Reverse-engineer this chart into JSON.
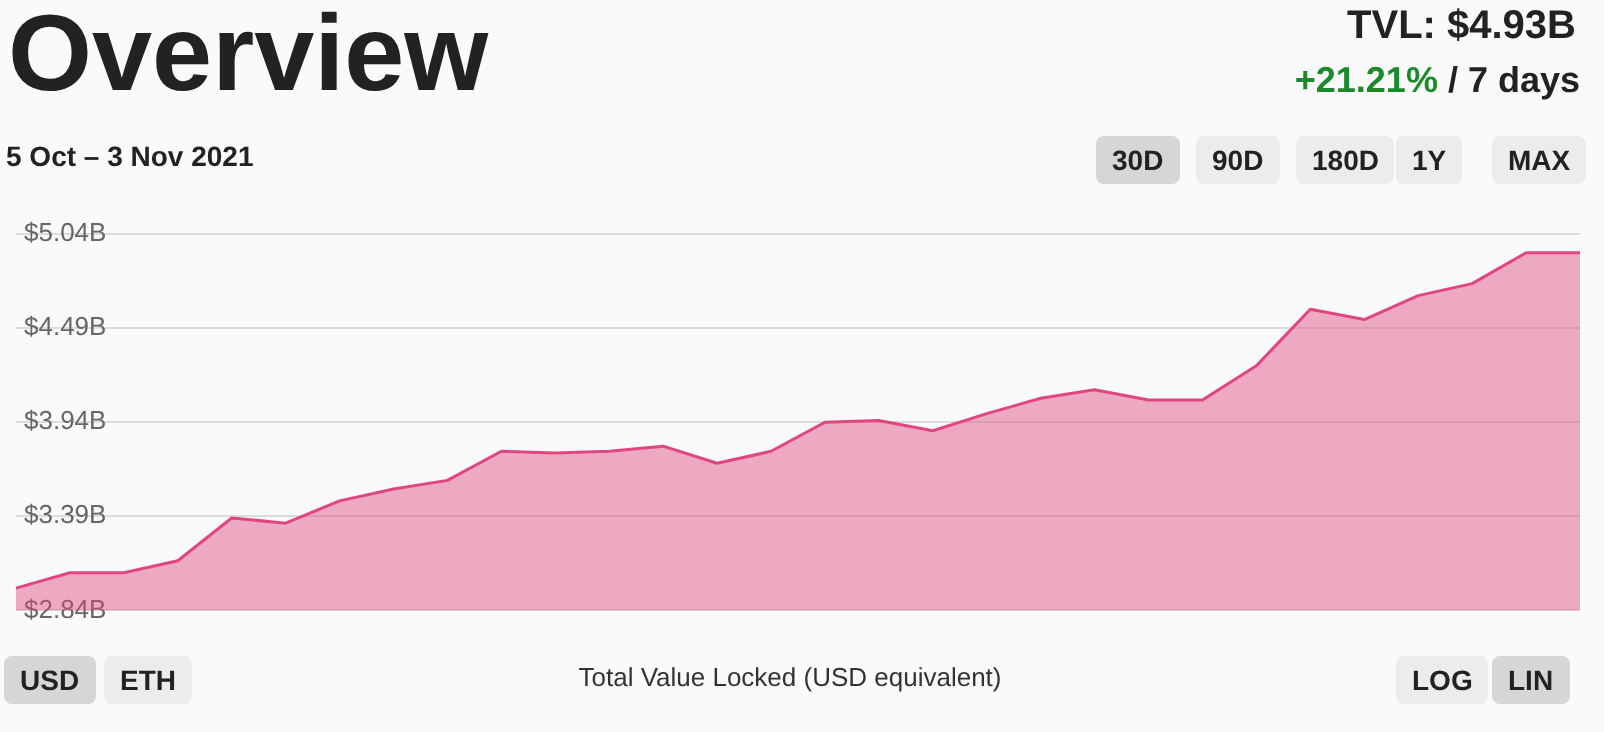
{
  "chart_data": {
    "type": "area",
    "title": "Overview",
    "subtitle": "5 Oct – 3 Nov 2021",
    "annotations": [
      "TVL: $4.93B",
      "+21.21% / 7 days",
      "30D",
      "90D",
      "180D",
      "1Y",
      "MAX",
      "USD",
      "ETH",
      "Total Value Locked (USD equivalent)",
      "LOG",
      "LIN"
    ],
    "categories": [
      null,
      null,
      null,
      null,
      null,
      null,
      null,
      null,
      null,
      null,
      null,
      null,
      null,
      null,
      null,
      null,
      null,
      null,
      null,
      null,
      null,
      null,
      null,
      null,
      null,
      null,
      null,
      null,
      null,
      null
    ],
    "series": [
      {
        "color": "#e0467f",
        "values": [
          2.97,
          3.06,
          3.06,
          3.13,
          3.38,
          3.35,
          3.48,
          3.55,
          3.6,
          3.77,
          3.76,
          3.77,
          3.8,
          3.7,
          3.77,
          3.94,
          3.95,
          3.89,
          3.99,
          4.08,
          4.13,
          4.07,
          4.07,
          4.27,
          4.6,
          4.54,
          4.68,
          4.75,
          4.93,
          4.93
        ]
      }
    ],
    "ylim": [
      2.84,
      5.04
    ],
    "yticks": [
      {
        "value": 2.84,
        "label": "$2.84B"
      },
      {
        "value": 3.39,
        "label": "$3.39B"
      },
      {
        "value": 3.94,
        "label": "$3.94B"
      },
      {
        "value": 4.49,
        "label": "$4.49B"
      },
      {
        "value": 5.04,
        "label": "$5.04B"
      }
    ],
    "grid": "y",
    "legend": false,
    "marker": "none",
    "line_style": "solid",
    "tick_labels": "y"
  }
}
